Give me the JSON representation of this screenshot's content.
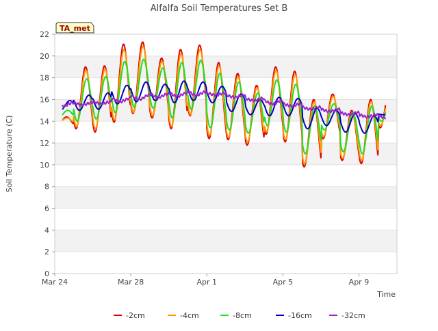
{
  "chart_data": {
    "type": "line",
    "title": "Alfalfa Soil Temperatures Set B",
    "xlabel": "Time",
    "ylabel": "Soil Temperature (C)",
    "badge": "TA_met",
    "xlim": [
      "2024-03-24",
      "2024-04-11"
    ],
    "ylim": [
      0,
      22
    ],
    "yticks": [
      0,
      2,
      4,
      6,
      8,
      10,
      12,
      14,
      16,
      18,
      20,
      22
    ],
    "xticks": [
      {
        "date": "2024-03-24",
        "label": "Mar 24"
      },
      {
        "date": "2024-03-28",
        "label": "Mar 28"
      },
      {
        "date": "2024-04-01",
        "label": "Apr 1"
      },
      {
        "date": "2024-04-05",
        "label": "Apr 5"
      },
      {
        "date": "2024-04-09",
        "label": "Apr 9"
      }
    ],
    "grid": "horizontal bands",
    "legend_position": "bottom",
    "colors": {
      "-2cm": "#dd0000",
      "-4cm": "#ff9900",
      "-8cm": "#22dd22",
      "-16cm": "#0000bb",
      "-32cm": "#9922cc",
      "band": "#f2f2f2",
      "badge_bg": "#ffffcc",
      "badge_text": "#990000"
    },
    "x": [
      "2024-03-24",
      "2024-03-25",
      "2024-03-26",
      "2024-03-27",
      "2024-03-28",
      "2024-03-29",
      "2024-03-30",
      "2024-03-31",
      "2024-04-01",
      "2024-04-02",
      "2024-04-03",
      "2024-04-04",
      "2024-04-05",
      "2024-04-06",
      "2024-04-07",
      "2024-04-08",
      "2024-04-09",
      "2024-04-10"
    ],
    "series": [
      {
        "name": "-2cm",
        "daily_min": [
          13.6,
          13.3,
          13.0,
          13.9,
          14.7,
          14.3,
          13.3,
          14.5,
          12.4,
          12.3,
          11.8,
          12.8,
          12.1,
          9.8,
          12.4,
          10.4,
          10.1,
          13.4
        ],
        "daily_max": [
          14.4,
          19.0,
          19.1,
          21.1,
          21.3,
          19.8,
          20.6,
          21.0,
          19.4,
          18.4,
          17.3,
          19.0,
          18.6,
          16.0,
          16.5,
          15.0,
          16.0,
          16.9
        ]
      },
      {
        "name": "-4cm",
        "daily_min": [
          13.8,
          13.5,
          13.3,
          14.1,
          14.8,
          14.5,
          13.5,
          14.6,
          12.7,
          12.5,
          12.1,
          13.0,
          12.3,
          10.1,
          12.6,
          10.6,
          10.4,
          13.6
        ],
        "daily_max": [
          14.3,
          18.7,
          18.8,
          20.6,
          20.9,
          19.5,
          20.2,
          20.6,
          19.1,
          18.1,
          17.1,
          18.7,
          18.3,
          15.8,
          16.3,
          14.8,
          15.8,
          16.6
        ]
      },
      {
        "name": "-8cm",
        "daily_min": [
          14.3,
          14.0,
          14.2,
          14.8,
          15.3,
          15.2,
          14.3,
          15.1,
          13.4,
          13.2,
          12.9,
          13.6,
          13.0,
          11.0,
          13.2,
          11.2,
          11.0,
          14.0
        ],
        "daily_max": [
          15.0,
          17.9,
          18.1,
          19.5,
          19.7,
          18.9,
          19.4,
          19.6,
          18.4,
          17.6,
          16.6,
          17.8,
          17.4,
          15.4,
          15.6,
          14.8,
          15.4,
          16.0
        ]
      },
      {
        "name": "-16cm",
        "daily_min": [
          15.0,
          15.0,
          15.1,
          15.6,
          15.8,
          15.9,
          15.7,
          15.9,
          15.7,
          14.9,
          14.6,
          14.5,
          14.5,
          13.3,
          13.6,
          13.0,
          12.9,
          14.6
        ],
        "daily_max": [
          15.9,
          16.4,
          16.6,
          17.3,
          17.6,
          17.4,
          17.7,
          17.6,
          17.2,
          16.5,
          16.0,
          16.2,
          16.1,
          15.2,
          15.0,
          14.7,
          14.5,
          14.7
        ]
      },
      {
        "name": "-32cm",
        "daily_min": [
          15.4,
          15.5,
          15.6,
          15.8,
          16.0,
          16.2,
          16.3,
          16.4,
          16.4,
          16.2,
          15.9,
          15.6,
          15.4,
          15.1,
          14.9,
          14.6,
          14.4,
          14.3
        ],
        "daily_max": [
          15.7,
          15.7,
          15.8,
          16.1,
          16.4,
          16.5,
          16.6,
          16.7,
          16.6,
          16.4,
          16.1,
          15.9,
          15.6,
          15.3,
          15.1,
          14.8,
          14.6,
          14.5
        ]
      }
    ]
  }
}
